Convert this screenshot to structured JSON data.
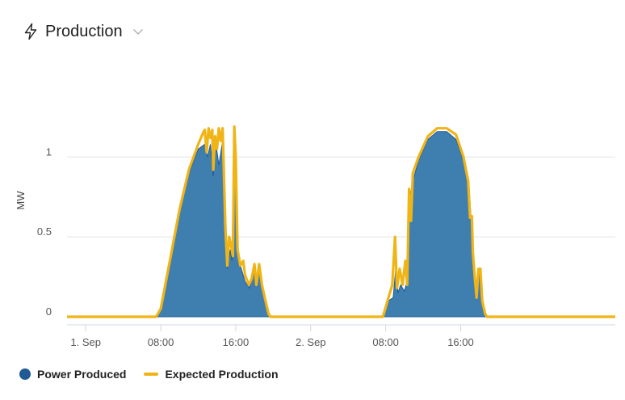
{
  "header": {
    "title": "Production",
    "icon": "lightning-bolt-icon",
    "dropdown_icon": "chevron-down-icon"
  },
  "colors": {
    "power_produced": "#3f7fb0",
    "power_produced_dot": "#1f5a94",
    "expected_production": "#f0b416",
    "grid": "#e3e3e3",
    "axis": "#cfd8e6"
  },
  "legend": {
    "items": [
      {
        "label": "Power Produced",
        "marker": "dot"
      },
      {
        "label": "Expected Production",
        "marker": "line"
      }
    ]
  },
  "chart_data": {
    "type": "area",
    "title": "",
    "xlabel": "",
    "ylabel": "MW",
    "x_unit": "hours",
    "xlim": [
      -2,
      56.5
    ],
    "ylim": [
      0,
      1.3
    ],
    "y_ticks": [
      {
        "value": 0,
        "label": "0"
      },
      {
        "value": 0.5,
        "label": "0.5"
      },
      {
        "value": 1,
        "label": "1"
      }
    ],
    "x_ticks": [
      {
        "value": 0,
        "label": "1. Sep"
      },
      {
        "value": 8,
        "label": "08:00"
      },
      {
        "value": 16,
        "label": "16:00"
      },
      {
        "value": 24,
        "label": "2. Sep"
      },
      {
        "value": 32,
        "label": "08:00"
      },
      {
        "value": 40,
        "label": "16:00"
      }
    ],
    "grid": true,
    "legend_position": "bottom-left",
    "series": [
      {
        "name": "Power Produced",
        "kind": "area",
        "points": [
          [
            -2,
            0
          ],
          [
            7.5,
            0
          ],
          [
            8,
            0.05
          ],
          [
            9,
            0.35
          ],
          [
            10,
            0.65
          ],
          [
            11,
            0.9
          ],
          [
            12,
            1.05
          ],
          [
            12.7,
            1.08
          ],
          [
            13,
            1.0
          ],
          [
            13.3,
            1.08
          ],
          [
            13.6,
            0.88
          ],
          [
            13.9,
            1.08
          ],
          [
            14.2,
            0.95
          ],
          [
            14.6,
            1.1
          ],
          [
            14.9,
            0.5
          ],
          [
            15.1,
            0.3
          ],
          [
            15.4,
            0.42
          ],
          [
            15.6,
            0.35
          ],
          [
            15.8,
            1.15
          ],
          [
            16.0,
            0.95
          ],
          [
            16.2,
            0.38
          ],
          [
            16.6,
            0.3
          ],
          [
            17.0,
            0.22
          ],
          [
            17.5,
            0.18
          ],
          [
            18.0,
            0.32
          ],
          [
            18.3,
            0.22
          ],
          [
            18.6,
            0.3
          ],
          [
            19.0,
            0.12
          ],
          [
            19.5,
            0.02
          ],
          [
            19.7,
            0
          ],
          [
            31.7,
            0
          ],
          [
            32.3,
            0.1
          ],
          [
            32.8,
            0.12
          ],
          [
            33.1,
            0.32
          ],
          [
            33.3,
            0.15
          ],
          [
            33.6,
            0.2
          ],
          [
            34.0,
            0.16
          ],
          [
            34.4,
            0.25
          ],
          [
            34.6,
            0.75
          ],
          [
            34.9,
            0.85
          ],
          [
            35.5,
            0.98
          ],
          [
            36.5,
            1.11
          ],
          [
            37.5,
            1.16
          ],
          [
            38.5,
            1.16
          ],
          [
            39.5,
            1.11
          ],
          [
            40.3,
            0.98
          ],
          [
            40.9,
            0.82
          ],
          [
            41.1,
            0.62
          ],
          [
            41.3,
            0.4
          ],
          [
            41.4,
            0.3
          ],
          [
            41.6,
            0.12
          ],
          [
            41.8,
            0.22
          ],
          [
            42.0,
            0.28
          ],
          [
            42.3,
            0.1
          ],
          [
            42.6,
            0.02
          ],
          [
            42.8,
            0
          ],
          [
            56.5,
            0
          ]
        ]
      },
      {
        "name": "Expected Production",
        "kind": "line",
        "points": [
          [
            -2,
            0
          ],
          [
            7.5,
            0
          ],
          [
            8,
            0.05
          ],
          [
            9,
            0.36
          ],
          [
            10,
            0.67
          ],
          [
            11,
            0.92
          ],
          [
            12,
            1.08
          ],
          [
            12.5,
            1.15
          ],
          [
            12.7,
            1.17
          ],
          [
            12.9,
            1.03
          ],
          [
            13.1,
            1.18
          ],
          [
            13.3,
            1.12
          ],
          [
            13.5,
            1.17
          ],
          [
            13.6,
            0.92
          ],
          [
            13.8,
            1.13
          ],
          [
            14.0,
            1.05
          ],
          [
            14.2,
            1.18
          ],
          [
            14.4,
            1.1
          ],
          [
            14.6,
            1.18
          ],
          [
            14.9,
            0.55
          ],
          [
            15.1,
            0.32
          ],
          [
            15.3,
            0.5
          ],
          [
            15.5,
            0.45
          ],
          [
            15.7,
            0.38
          ],
          [
            15.85,
            1.19
          ],
          [
            16.0,
            1.0
          ],
          [
            16.2,
            0.42
          ],
          [
            16.5,
            0.32
          ],
          [
            16.8,
            0.35
          ],
          [
            17.0,
            0.26
          ],
          [
            17.4,
            0.2
          ],
          [
            17.7,
            0.24
          ],
          [
            18.0,
            0.33
          ],
          [
            18.2,
            0.2
          ],
          [
            18.5,
            0.33
          ],
          [
            18.8,
            0.2
          ],
          [
            19.1,
            0.12
          ],
          [
            19.5,
            0.02
          ],
          [
            19.7,
            0
          ],
          [
            31.7,
            0
          ],
          [
            32.3,
            0.12
          ],
          [
            32.7,
            0.2
          ],
          [
            33.0,
            0.5
          ],
          [
            33.2,
            0.18
          ],
          [
            33.5,
            0.3
          ],
          [
            33.8,
            0.2
          ],
          [
            34.1,
            0.35
          ],
          [
            34.3,
            0.2
          ],
          [
            34.5,
            0.8
          ],
          [
            34.7,
            0.6
          ],
          [
            34.9,
            0.9
          ],
          [
            35.5,
            1.0
          ],
          [
            36.5,
            1.13
          ],
          [
            37.5,
            1.18
          ],
          [
            38.5,
            1.18
          ],
          [
            39.5,
            1.14
          ],
          [
            40.3,
            1.0
          ],
          [
            40.8,
            0.85
          ],
          [
            41.0,
            0.62
          ],
          [
            41.2,
            0.63
          ],
          [
            41.3,
            0.4
          ],
          [
            41.5,
            0.25
          ],
          [
            41.7,
            0.12
          ],
          [
            41.9,
            0.3
          ],
          [
            42.1,
            0.3
          ],
          [
            42.3,
            0.1
          ],
          [
            42.6,
            0.02
          ],
          [
            42.8,
            0
          ],
          [
            56.5,
            0
          ]
        ]
      }
    ]
  }
}
